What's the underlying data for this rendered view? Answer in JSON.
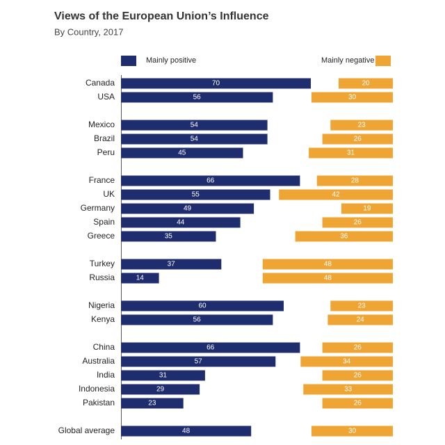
{
  "chart_data": {
    "type": "bar",
    "title": "Views of the European Union’s Influence",
    "subtitle": "By Country, 2017",
    "categories": [
      "Canada",
      "USA",
      null,
      "Mexico",
      "Brazil",
      "Peru",
      null,
      "France",
      "UK",
      "Germany",
      "Spain",
      "Greece",
      null,
      "Turkey",
      "Russia",
      null,
      "Nigeria",
      "Kenya",
      null,
      "China",
      "Australia",
      "India",
      "Indonesia",
      "Pakistan",
      null,
      "Global average"
    ],
    "series": [
      {
        "name": "Mainly positive",
        "color": "#1f2d6e",
        "values": [
          70,
          56,
          null,
          54,
          54,
          45,
          null,
          66,
          55,
          49,
          44,
          35,
          null,
          37,
          14,
          null,
          60,
          56,
          null,
          66,
          57,
          31,
          29,
          23,
          null,
          48
        ]
      },
      {
        "name": "Mainly negative",
        "color": "#eea534",
        "values": [
          20,
          30,
          null,
          23,
          26,
          31,
          null,
          28,
          42,
          19,
          26,
          36,
          null,
          48,
          48,
          null,
          23,
          24,
          null,
          26,
          34,
          26,
          33,
          26,
          null,
          30
        ]
      }
    ]
  }
}
